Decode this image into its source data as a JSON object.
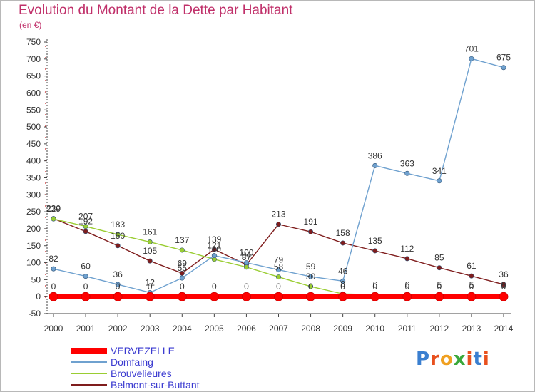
{
  "title": "Evolution du Montant de la Dette par Habitant",
  "unit": "(en €)",
  "logo": "Proxiti",
  "chart_data": {
    "type": "line",
    "x": [
      2000,
      2001,
      2002,
      2003,
      2004,
      2005,
      2006,
      2007,
      2008,
      2009,
      2010,
      2011,
      2012,
      2013,
      2014
    ],
    "ylim": [
      -50,
      750
    ],
    "yticks": [
      -50,
      0,
      50,
      100,
      150,
      200,
      250,
      300,
      350,
      400,
      450,
      500,
      550,
      600,
      650,
      700,
      750
    ],
    "grid": false,
    "legend_position": "bottom-left",
    "series": [
      {
        "name": "VERVEZELLE",
        "color": "#ff0000",
        "values": [
          0,
          0,
          0,
          0,
          0,
          0,
          0,
          0,
          0,
          0,
          0,
          0,
          0,
          0,
          0
        ]
      },
      {
        "name": "Domfaing",
        "color": "#6fa1cf",
        "values": [
          82,
          60,
          36,
          12,
          55,
          121,
          100,
          79,
          59,
          46,
          386,
          363,
          341,
          701,
          675
        ]
      },
      {
        "name": "Brouvelieures",
        "color": "#9acd32",
        "values": [
          229,
          207,
          183,
          161,
          137,
          110,
          87,
          58,
          30,
          8,
          6,
          6,
          5,
          5,
          5
        ]
      },
      {
        "name": "Belmont-sur-Buttant",
        "color": "#7f1d1d",
        "values": [
          230,
          192,
          150,
          105,
          69,
          139,
          94,
          213,
          191,
          158,
          135,
          112,
          85,
          61,
          36
        ]
      }
    ]
  }
}
